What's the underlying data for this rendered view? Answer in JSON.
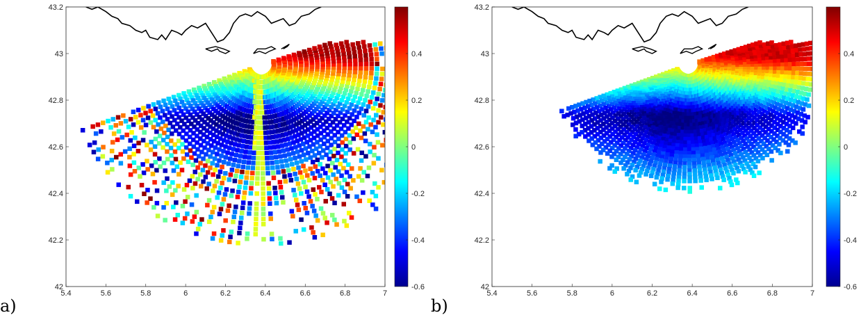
{
  "figure": {
    "panel_labels": [
      "a)",
      "b)"
    ]
  },
  "chart_data": [
    {
      "type": "heatmap",
      "panel": "a)",
      "xlim": [
        5.4,
        7.0
      ],
      "ylim": [
        42.0,
        43.2
      ],
      "xticks": [
        5.4,
        5.6,
        5.8,
        6.0,
        6.2,
        6.4,
        6.6,
        6.8,
        7.0
      ],
      "xtick_labels": [
        "5.4",
        "5.6",
        "5.8",
        "6",
        "6.2",
        "6.4",
        "6.6",
        "6.8",
        "7"
      ],
      "yticks": [
        42.0,
        42.2,
        42.4,
        42.6,
        42.8,
        43.0,
        43.2
      ],
      "ytick_labels": [
        "42",
        "42.2",
        "42.4",
        "42.6",
        "42.8",
        "43",
        "43.2"
      ],
      "colorbar": {
        "colormap": "jet",
        "clim": [
          -0.6,
          0.6
        ],
        "ticks": [
          -0.6,
          -0.4,
          -0.2,
          0,
          0.2,
          0.4
        ],
        "tick_labels": [
          "-0.6",
          "-0.4",
          "-0.2",
          "0",
          "0.2",
          "0.4"
        ]
      },
      "coastline_color": "#000000",
      "grid": false,
      "field": {
        "radar_origin": [
          6.38,
          42.95
        ],
        "r_min": 0.04,
        "r_max": 0.78,
        "theta_range_deg": [
          -160,
          20
        ],
        "description_values": {
          "near_coast_max": 0.55,
          "central_min": -0.55,
          "south_edge": -0.15
        },
        "noisy_edges": true,
        "radial_artifact_stripe_lon": 6.37
      }
    },
    {
      "type": "heatmap",
      "panel": "b)",
      "xlim": [
        5.4,
        7.0
      ],
      "ylim": [
        42.0,
        43.2
      ],
      "xticks": [
        5.4,
        5.6,
        5.8,
        6.0,
        6.2,
        6.4,
        6.6,
        6.8,
        7.0
      ],
      "xtick_labels": [
        "5.4",
        "5.6",
        "5.8",
        "6",
        "6.2",
        "6.4",
        "6.6",
        "6.8",
        "7"
      ],
      "yticks": [
        42.0,
        42.2,
        42.4,
        42.6,
        42.8,
        43.0,
        43.2
      ],
      "ytick_labels": [
        "42",
        "42.2",
        "42.4",
        "42.6",
        "42.8",
        "43",
        "43.2"
      ],
      "colorbar": {
        "colormap": "jet",
        "clim": [
          -0.6,
          0.6
        ],
        "ticks": [
          -0.6,
          -0.4,
          -0.2,
          0,
          0.2,
          0.4
        ],
        "tick_labels": [
          "-0.6",
          "-0.4",
          "-0.2",
          "0",
          "0.2",
          "0.4"
        ]
      },
      "coastline_color": "#000000",
      "grid": false,
      "field": {
        "radar_origin": [
          6.38,
          42.95
        ],
        "r_min": 0.04,
        "r_max": 0.55,
        "theta_range_deg": [
          -160,
          20
        ],
        "description_values": {
          "near_coast_max": 0.5,
          "central_min": -0.55,
          "south_edge": -0.25
        },
        "noisy_edges": false,
        "radial_artifact_stripe_lon": null
      }
    }
  ]
}
